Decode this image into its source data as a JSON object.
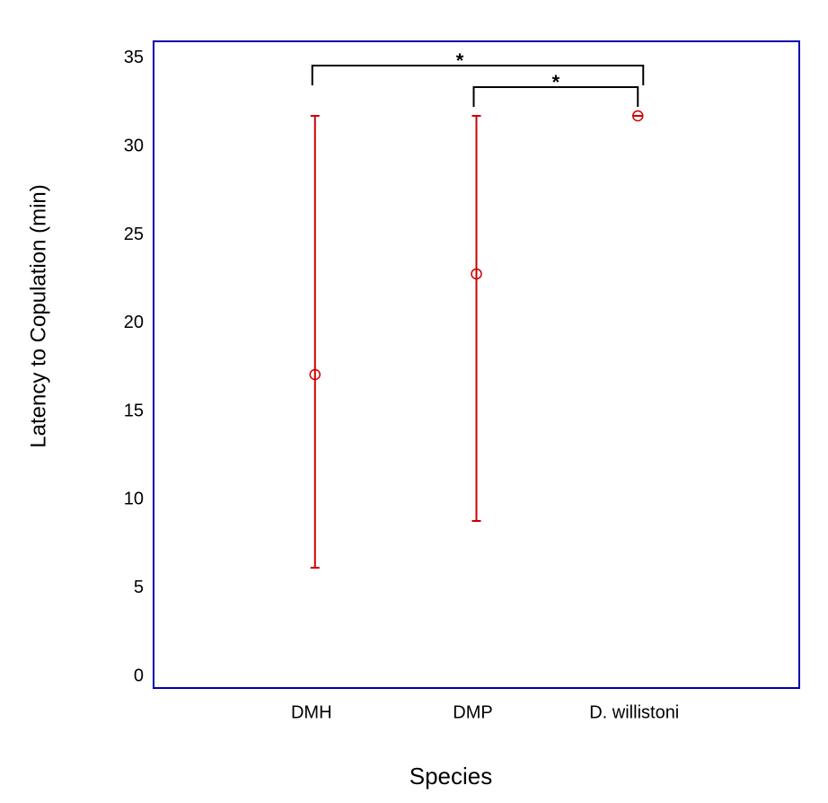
{
  "chart_data": {
    "type": "errorbar",
    "x_label": "Species",
    "y_label": "Latency to Copulation (min)",
    "categories": [
      "DMH",
      "DMP",
      "D. willistoni"
    ],
    "values": [
      17.09,
      22.79,
      31.74
    ],
    "lower": [
      6.15,
      8.8,
      31.74
    ],
    "upper": [
      31.74,
      31.74,
      31.74
    ],
    "color": "#cc0000",
    "frame_color": "#0000aa",
    "ylim": [
      -0.66,
      35.96
    ],
    "yticks": [
      0,
      5,
      10,
      15,
      20,
      25,
      30,
      35
    ],
    "brackets": [
      {
        "label": "*",
        "between": [
          0,
          2
        ]
      },
      {
        "label": "*",
        "between": [
          1,
          2
        ]
      }
    ]
  }
}
